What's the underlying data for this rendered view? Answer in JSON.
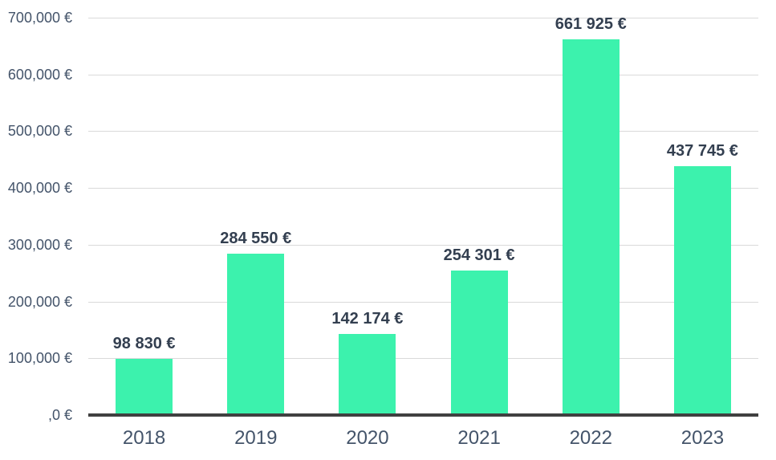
{
  "chart_data": {
    "type": "bar",
    "title": "",
    "categories": [
      "2018",
      "2019",
      "2020",
      "2021",
      "2022",
      "2023"
    ],
    "values": [
      98830,
      284550,
      142174,
      254301,
      661925,
      437745
    ],
    "data_labels": [
      "98 830 €",
      "284 550 €",
      "142 174 €",
      "254 301 €",
      "661 925 €",
      "437 745 €"
    ],
    "y_ticks": [
      {
        "value": 0,
        "label": ",0 €"
      },
      {
        "value": 100000,
        "label": "100,000 €"
      },
      {
        "value": 200000,
        "label": "200,000 €"
      },
      {
        "value": 300000,
        "label": "300,000 €"
      },
      {
        "value": 400000,
        "label": "400,000 €"
      },
      {
        "value": 500000,
        "label": "500,000 €"
      },
      {
        "value": 600000,
        "label": "600,000 €"
      },
      {
        "value": 700000,
        "label": "700,000 €"
      }
    ],
    "ylim": [
      0,
      700000
    ],
    "xlabel": "",
    "ylabel": "",
    "grid": true,
    "legend": false,
    "colors": {
      "bar": "#3CF2AD",
      "gridline": "#DADADA",
      "axis_line": "#404040",
      "tick_label": "#44546A",
      "data_label": "#333F50",
      "background": "#FFFFFF"
    }
  }
}
